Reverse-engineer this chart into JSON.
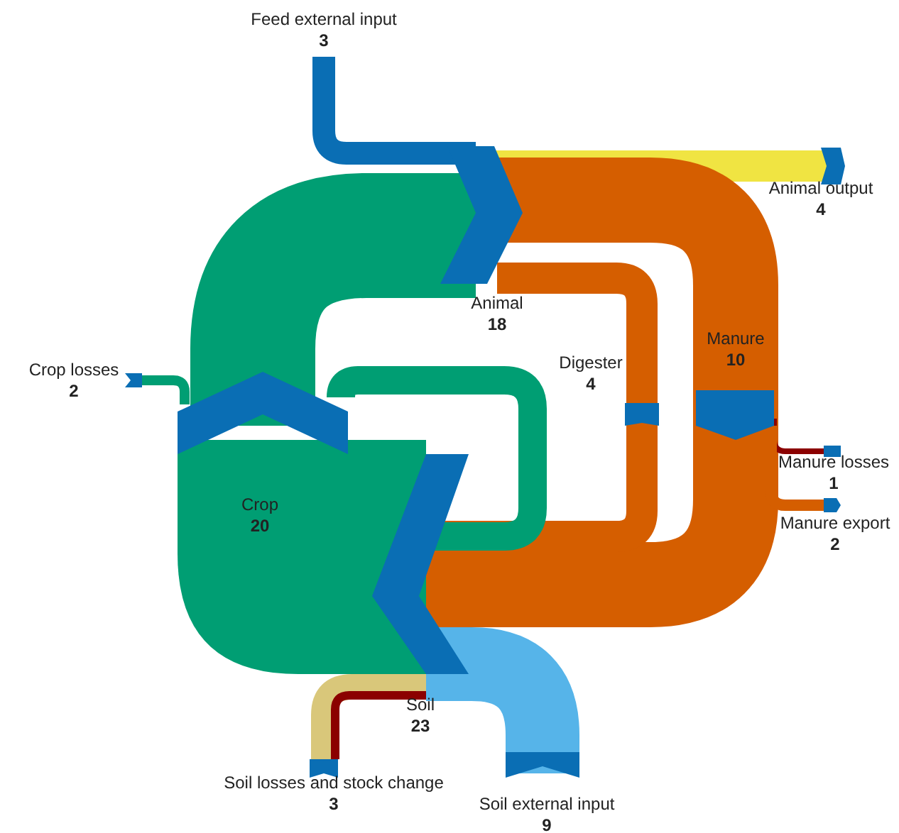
{
  "chart_data": {
    "type": "other",
    "categories": [
      "Feed external input",
      "Animal output",
      "Animal",
      "Crop losses",
      "Digester",
      "Manure",
      "Manure losses",
      "Crop",
      "Manure export",
      "Soil",
      "Soil losses and stock change",
      "Soil external input"
    ],
    "values": [
      3,
      4,
      18,
      2,
      4,
      10,
      1,
      20,
      2,
      23,
      3,
      9
    ],
    "data_labels": true
  }
}
